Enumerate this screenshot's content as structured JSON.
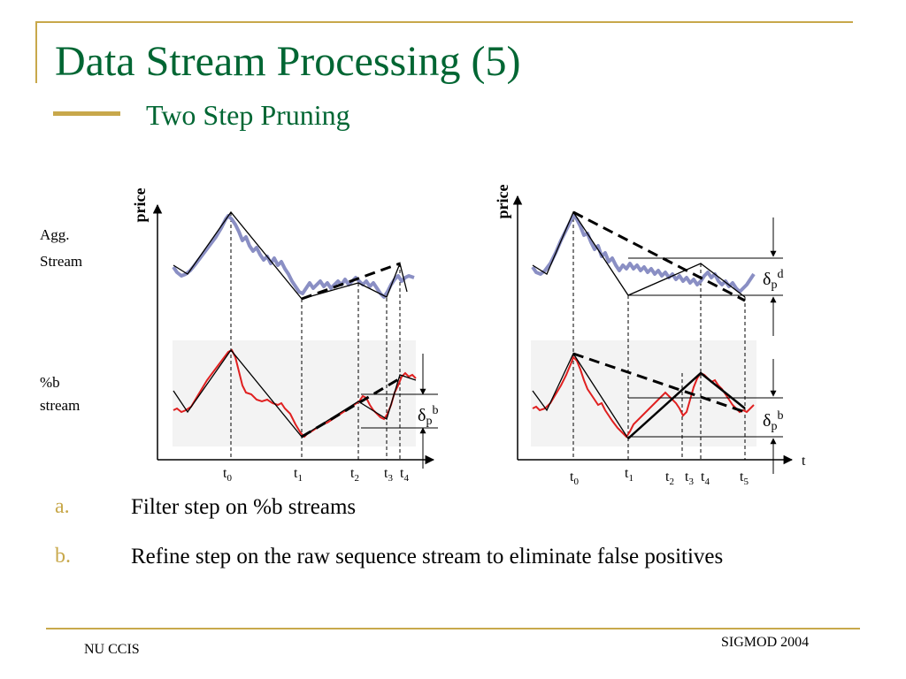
{
  "title": "Data Stream Processing (5)",
  "subtitle": "Two Step Pruning",
  "left_diagram": {
    "y_axis_label": "price",
    "row_label_top": [
      "Agg.",
      "Stream"
    ],
    "row_label_bottom": [
      "%b",
      "stream"
    ],
    "ticks": [
      {
        "base": "t",
        "sub": "0"
      },
      {
        "base": "t",
        "sub": "1"
      },
      {
        "base": "t",
        "sub": "2"
      },
      {
        "base": "t",
        "sub": "3"
      },
      {
        "base": "t",
        "sub": "4"
      }
    ],
    "delta_label": {
      "base": "δ",
      "sub": "p",
      "sup": "b"
    }
  },
  "right_diagram": {
    "y_axis_label": "price",
    "x_axis_label": "t",
    "ticks": [
      {
        "base": "t",
        "sub": "0"
      },
      {
        "base": "t",
        "sub": "1"
      },
      {
        "base": "t",
        "sub": "2"
      },
      {
        "base": "t",
        "sub": "3"
      },
      {
        "base": "t",
        "sub": "4"
      },
      {
        "base": "t",
        "sub": "5"
      }
    ],
    "delta_top": {
      "base": "δ",
      "sub": "p",
      "sup": "d"
    },
    "delta_bottom": {
      "base": "δ",
      "sub": "p",
      "sup": "b"
    }
  },
  "bullets": [
    {
      "marker": "a.",
      "text": "Filter step on %b streams"
    },
    {
      "marker": "b.",
      "text": "Refine step on the raw sequence stream to eliminate false positives"
    }
  ],
  "footer": {
    "left": "NU CCIS",
    "right": "SIGMOD 2004"
  },
  "colors": {
    "title": "#006633",
    "accent": "#c8a84b",
    "agg_stream": "#8a8fc4",
    "b_stream": "#e02020"
  }
}
